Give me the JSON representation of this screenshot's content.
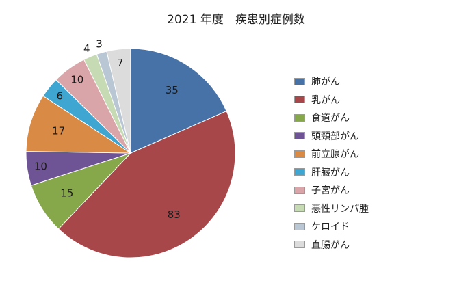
{
  "chart_data": {
    "type": "pie",
    "title": "2021 年度　疾患別症例数",
    "legend_position": "right",
    "categories": [
      "肺がん",
      "乳がん",
      "食道がん",
      "頭頸部がん",
      "前立腺がん",
      "肝臓がん",
      "子宮がん",
      "悪性リンパ腫",
      "ケロイド",
      "直腸がん"
    ],
    "values": [
      35,
      83,
      15,
      10,
      17,
      6,
      10,
      4,
      3,
      7
    ],
    "colors": [
      "#4672a8",
      "#a8474a",
      "#86a84b",
      "#6f5495",
      "#d98a45",
      "#3fa6d1",
      "#daa5a8",
      "#c6dbb4",
      "#b9c6d3",
      "#dcdcdc"
    ],
    "start_angle": "top (12 o'clock)",
    "direction": "clockwise"
  }
}
